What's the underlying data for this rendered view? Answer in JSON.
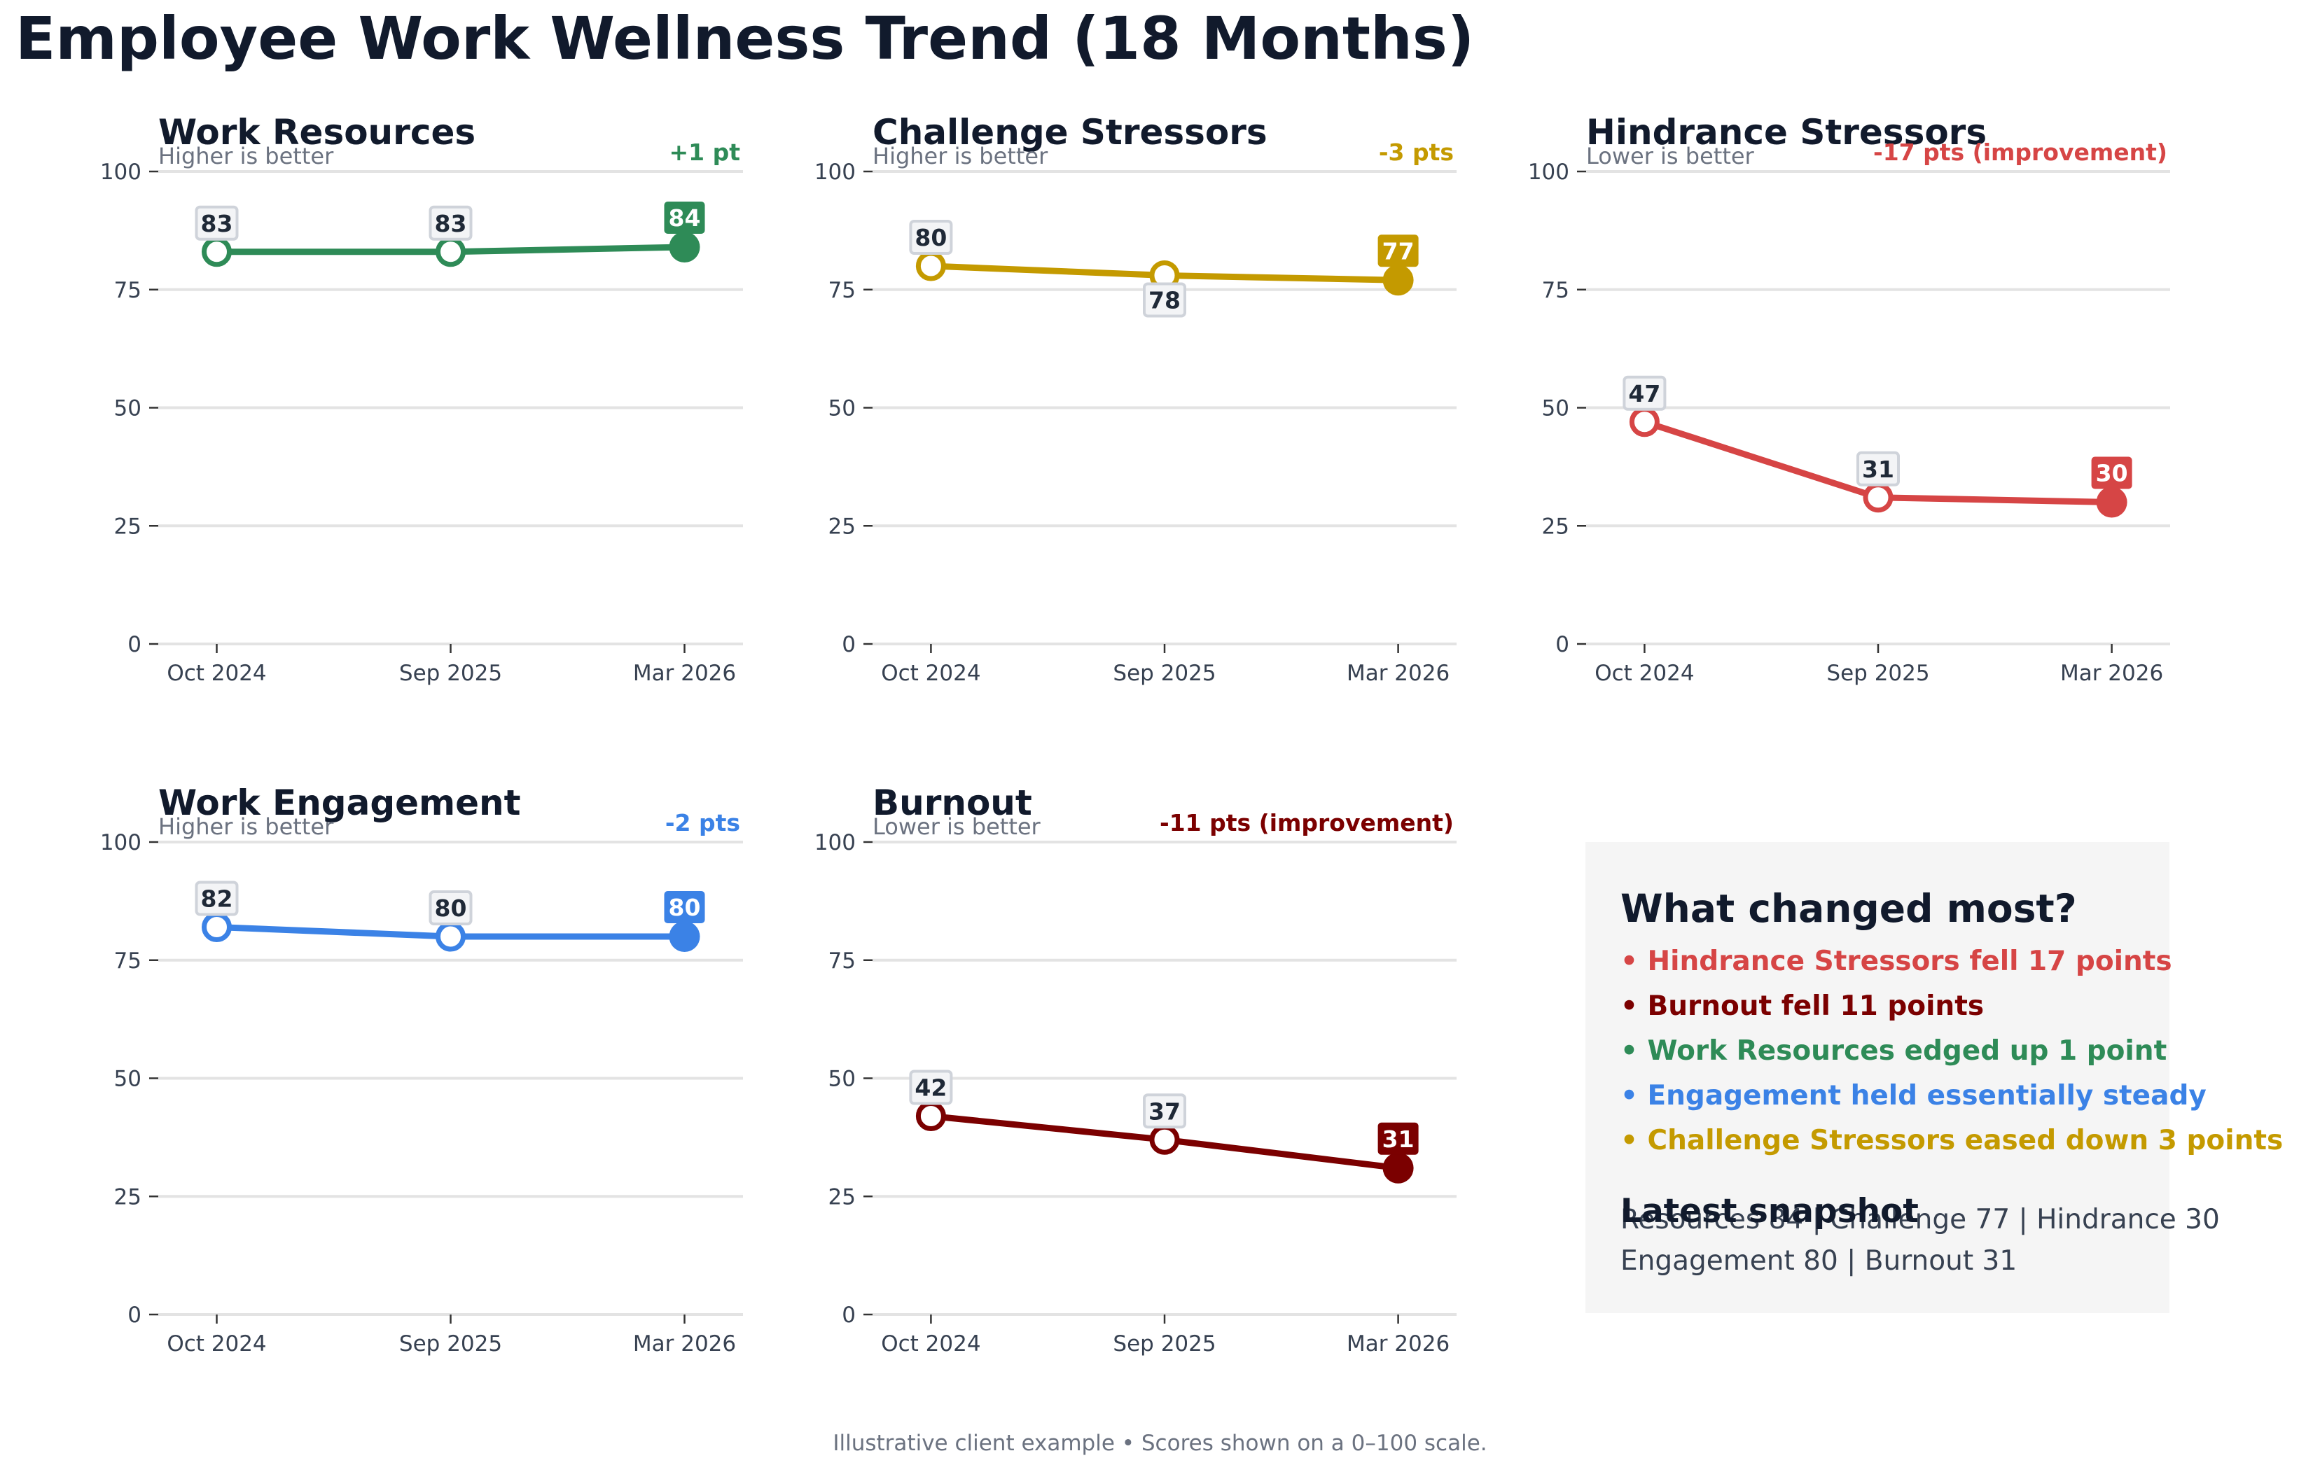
{
  "title": "Employee Work Wellness Trend (18 Months)",
  "footer": "Illustrative client example • Scores shown on a 0–100 scale.",
  "chart_data": [
    {
      "type": "line",
      "title": "Work Resources",
      "subtitle": "Higher is better",
      "change_label": "+1 pt",
      "color": "#2e8b57",
      "categories": [
        "Oct 2024",
        "Sep 2025",
        "Mar 2026"
      ],
      "values": [
        83,
        83,
        84
      ],
      "value_labels": [
        "83",
        "83",
        "84"
      ],
      "ylim": [
        0,
        100
      ],
      "yticks": [
        "0",
        "25",
        "50",
        "75",
        "100"
      ],
      "label_positions": [
        "above",
        "above",
        "above"
      ],
      "grid": true
    },
    {
      "type": "line",
      "title": "Challenge Stressors",
      "subtitle": "Higher is better",
      "change_label": "-3 pts",
      "color": "#c49a00",
      "categories": [
        "Oct 2024",
        "Sep 2025",
        "Mar 2026"
      ],
      "values": [
        80,
        78,
        77
      ],
      "value_labels": [
        "80",
        "78",
        "77"
      ],
      "ylim": [
        0,
        100
      ],
      "yticks": [
        "0",
        "25",
        "50",
        "75",
        "100"
      ],
      "label_positions": [
        "above",
        "below",
        "above"
      ],
      "grid": true
    },
    {
      "type": "line",
      "title": "Hindrance Stressors",
      "subtitle": "Lower is better",
      "change_label": "-17 pts (improvement)",
      "color": "#d64545",
      "categories": [
        "Oct 2024",
        "Sep 2025",
        "Mar 2026"
      ],
      "values": [
        47,
        31,
        30
      ],
      "value_labels": [
        "47",
        "31",
        "30"
      ],
      "ylim": [
        0,
        100
      ],
      "yticks": [
        "0",
        "25",
        "50",
        "75",
        "100"
      ],
      "label_positions": [
        "above",
        "above",
        "above"
      ],
      "grid": true
    },
    {
      "type": "line",
      "title": "Work Engagement",
      "subtitle": "Higher is better",
      "change_label": "-2 pts",
      "color": "#3b82e6",
      "categories": [
        "Oct 2024",
        "Sep 2025",
        "Mar 2026"
      ],
      "values": [
        82,
        80,
        80
      ],
      "value_labels": [
        "82",
        "80",
        "80"
      ],
      "ylim": [
        0,
        100
      ],
      "yticks": [
        "0",
        "25",
        "50",
        "75",
        "100"
      ],
      "label_positions": [
        "above",
        "above",
        "above"
      ],
      "grid": true
    },
    {
      "type": "line",
      "title": "Burnout",
      "subtitle": "Lower is better",
      "change_label": "-11 pts (improvement)",
      "color": "#7b0000",
      "categories": [
        "Oct 2024",
        "Sep 2025",
        "Mar 2026"
      ],
      "values": [
        42,
        37,
        31
      ],
      "value_labels": [
        "42",
        "37",
        "31"
      ],
      "ylim": [
        0,
        100
      ],
      "yticks": [
        "0",
        "25",
        "50",
        "75",
        "100"
      ],
      "label_positions": [
        "above",
        "above",
        "above"
      ],
      "grid": true
    }
  ],
  "insights": {
    "title": "What changed most?",
    "items": [
      {
        "text": "• Hindrance Stressors fell 17 points",
        "color": "#d64545"
      },
      {
        "text": "• Burnout fell 11 points",
        "color": "#7b0000"
      },
      {
        "text": "• Work Resources edged up 1 point",
        "color": "#2e8b57"
      },
      {
        "text": "• Engagement held essentially steady",
        "color": "#3b82e6"
      },
      {
        "text": "• Challenge Stressors eased down 3 points",
        "color": "#c49a00"
      }
    ],
    "snapshot_title": "Latest snapshot",
    "snapshot_lines": [
      "Resources 84 | Challenge 77 | Hindrance 30",
      "Engagement 80 | Burnout 31"
    ]
  }
}
